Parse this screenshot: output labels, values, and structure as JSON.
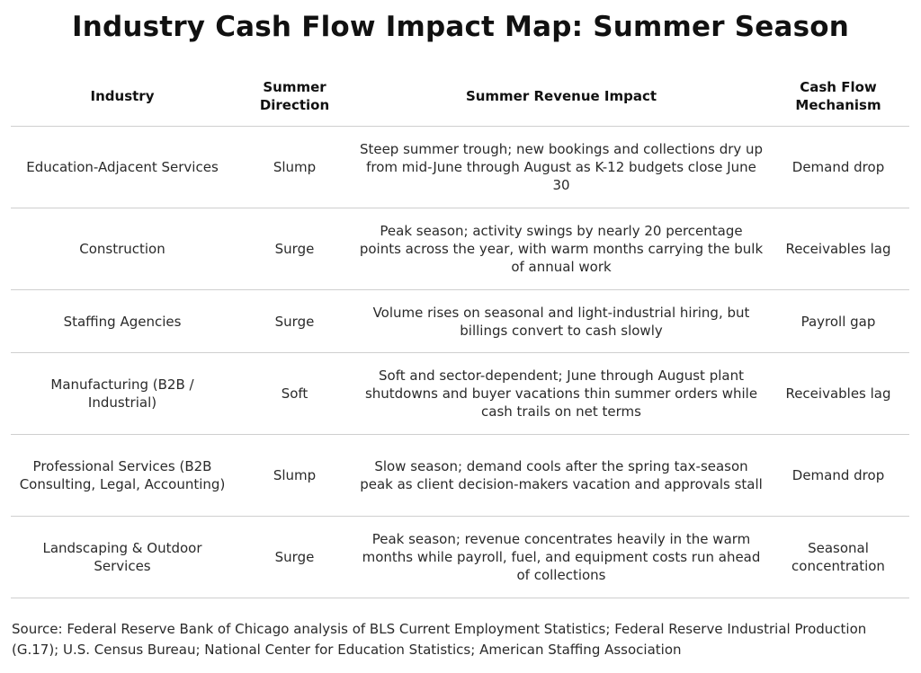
{
  "title": "Industry Cash Flow Impact Map: Summer Season",
  "headers": {
    "industry": "Industry",
    "direction": "Summer Direction",
    "impact": "Summer Revenue Impact",
    "mechanism": "Cash Flow Mechanism"
  },
  "rows": [
    {
      "industry": "Education-Adjacent Services",
      "direction": "Slump",
      "impact": "Steep summer trough; new bookings and collections dry up from mid-June through August as K-12 budgets close June 30",
      "mechanism": "Demand drop"
    },
    {
      "industry": "Construction",
      "direction": "Surge",
      "impact": "Peak season; activity swings by nearly 20 percentage points across the year, with warm months carrying the bulk of annual work",
      "mechanism": "Receivables lag"
    },
    {
      "industry": "Staffing Agencies",
      "direction": "Surge",
      "impact": "Volume rises on seasonal and light-industrial hiring, but billings convert to cash slowly",
      "mechanism": "Payroll gap"
    },
    {
      "industry": "Manufacturing (B2B / Industrial)",
      "direction": "Soft",
      "impact": "Soft and sector-dependent; June through August plant shutdowns and buyer vacations thin summer orders while cash trails on net terms",
      "mechanism": "Receivables lag"
    },
    {
      "industry": "Professional Services (B2B Consulting, Legal, Accounting)",
      "direction": "Slump",
      "impact": "Slow season; demand cools after the spring tax-season peak as client decision-makers vacation and approvals stall",
      "mechanism": "Demand drop"
    },
    {
      "industry": "Landscaping & Outdoor Services",
      "direction": "Surge",
      "impact": "Peak season; revenue concentrates heavily in the warm months while payroll, fuel, and equipment costs run ahead of collections",
      "mechanism": "Seasonal concentration"
    }
  ],
  "source": "Source: Federal Reserve Bank of Chicago analysis of BLS Current Employment Statistics; Federal Reserve Industrial Production (G.17); U.S. Census Bureau; National Center for Education Statistics; American Staffing Association"
}
